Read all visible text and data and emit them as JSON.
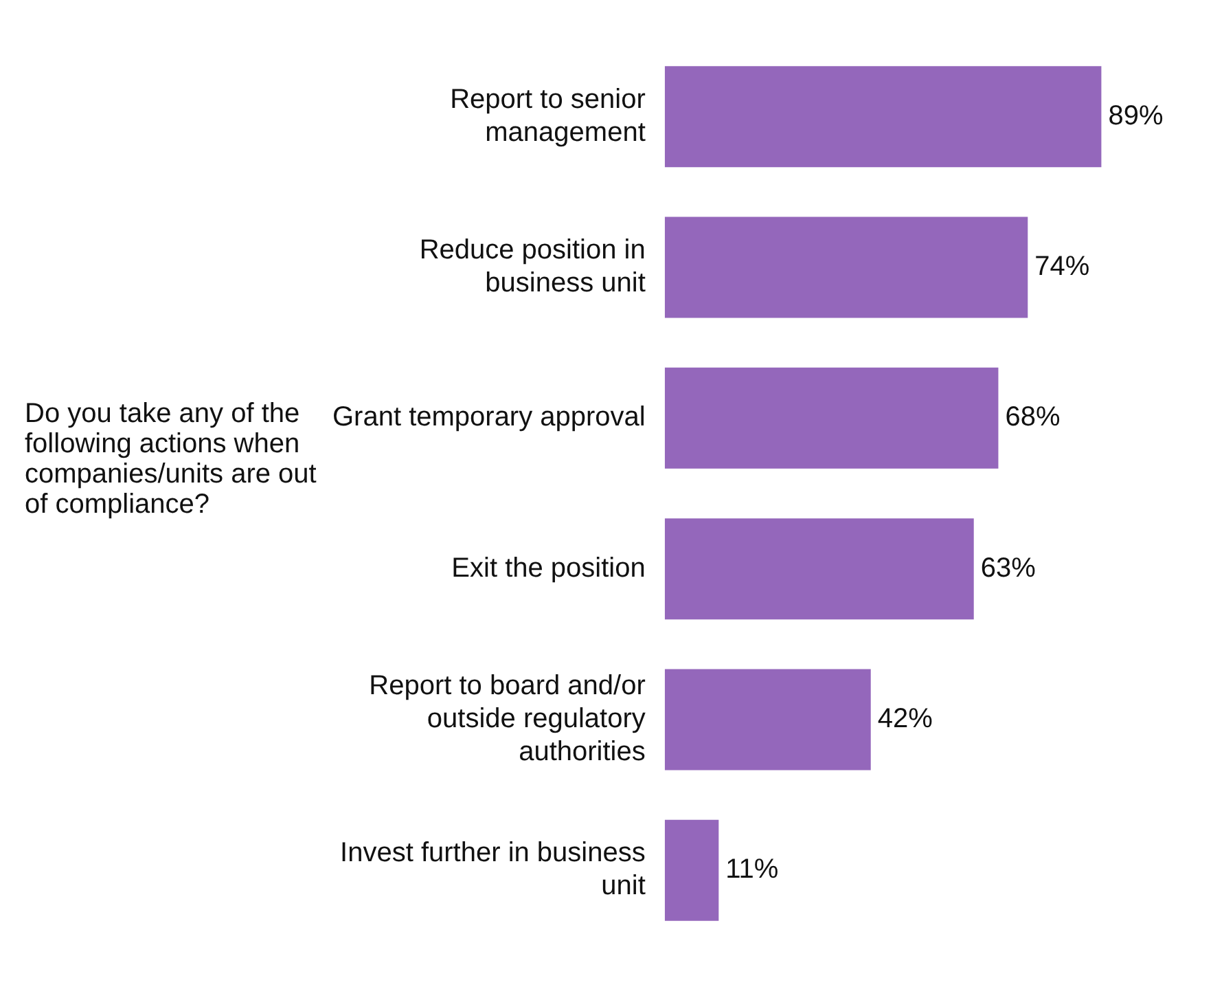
{
  "chart_data": {
    "type": "bar",
    "orientation": "horizontal",
    "title": "Do you take any of the following actions when companies/units are out of compliance?",
    "categories": [
      "Report to senior management",
      "Reduce position in business unit",
      "Grant temporary approval",
      "Exit the position",
      "Report to board and/or outside regulatory authorities",
      "Invest further in business unit"
    ],
    "values": [
      89,
      74,
      68,
      63,
      42,
      11
    ],
    "value_labels": [
      "89%",
      "74%",
      "68%",
      "63%",
      "42%",
      "11%"
    ],
    "color": "#9467bb"
  }
}
